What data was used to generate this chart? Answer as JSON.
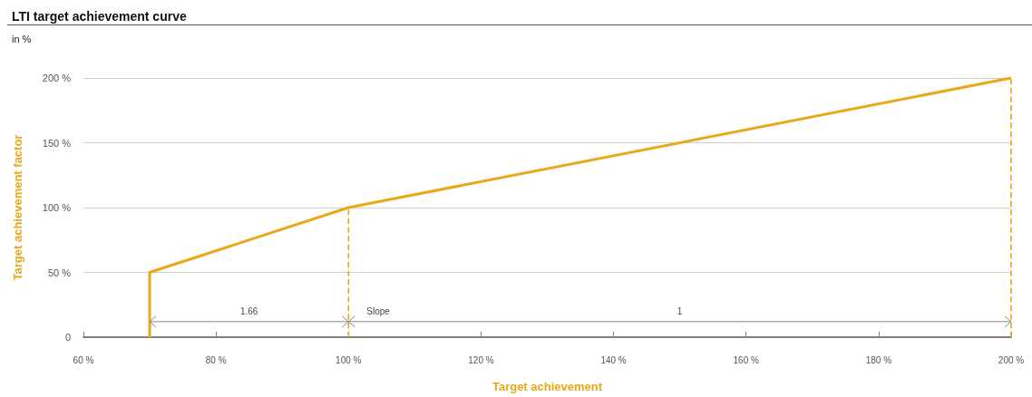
{
  "chart_data": {
    "type": "line",
    "title": "LTI target achievement curve",
    "subtitle": "in %",
    "xlabel": "Target achievement",
    "ylabel": "Target achievement factor",
    "series": [
      {
        "color": "#e8a817",
        "x": [
          70,
          70,
          100,
          200
        ],
        "values": [
          0,
          50,
          100,
          200
        ],
        "line_style": "solid",
        "marker": "none"
      },
      {
        "color": "#e8a817",
        "x": [
          100,
          100
        ],
        "values": [
          0,
          100
        ],
        "line_style": "dashed",
        "marker": "none"
      },
      {
        "color": "#8a8a8a",
        "x": [
          70,
          100
        ],
        "values": [
          12,
          12
        ],
        "line_style": "solid",
        "marker": "cross"
      },
      {
        "color": "#8a8a8a",
        "x": [
          100,
          200
        ],
        "values": [
          12,
          12
        ],
        "line_style": "solid",
        "marker": "cross"
      }
    ],
    "ref_lines": [
      {
        "axis": "x",
        "value": 200,
        "color": "#e8a817",
        "line_style": "dashed"
      }
    ],
    "xlim": [
      60,
      200
    ],
    "xticks": [
      {
        "value": 60,
        "label": "60 %"
      },
      {
        "value": 80,
        "label": "80 %"
      },
      {
        "value": 100,
        "label": "100 %"
      },
      {
        "value": 120,
        "label": "120 %"
      },
      {
        "value": 140,
        "label": "140 %"
      },
      {
        "value": 160,
        "label": "160 %"
      },
      {
        "value": 180,
        "label": "180 %"
      },
      {
        "value": 200,
        "label": "200 %"
      }
    ],
    "ylim": [
      0,
      200
    ],
    "yticks": [
      0,
      {
        "value": 50,
        "label": "50 %"
      },
      {
        "value": 100,
        "label": "100 %"
      },
      {
        "value": 150,
        "label": "150 %"
      },
      {
        "value": 200,
        "label": "200 %"
      }
    ],
    "annotations": [
      "1.66",
      "Slope",
      "1"
    ],
    "grid": "y"
  }
}
